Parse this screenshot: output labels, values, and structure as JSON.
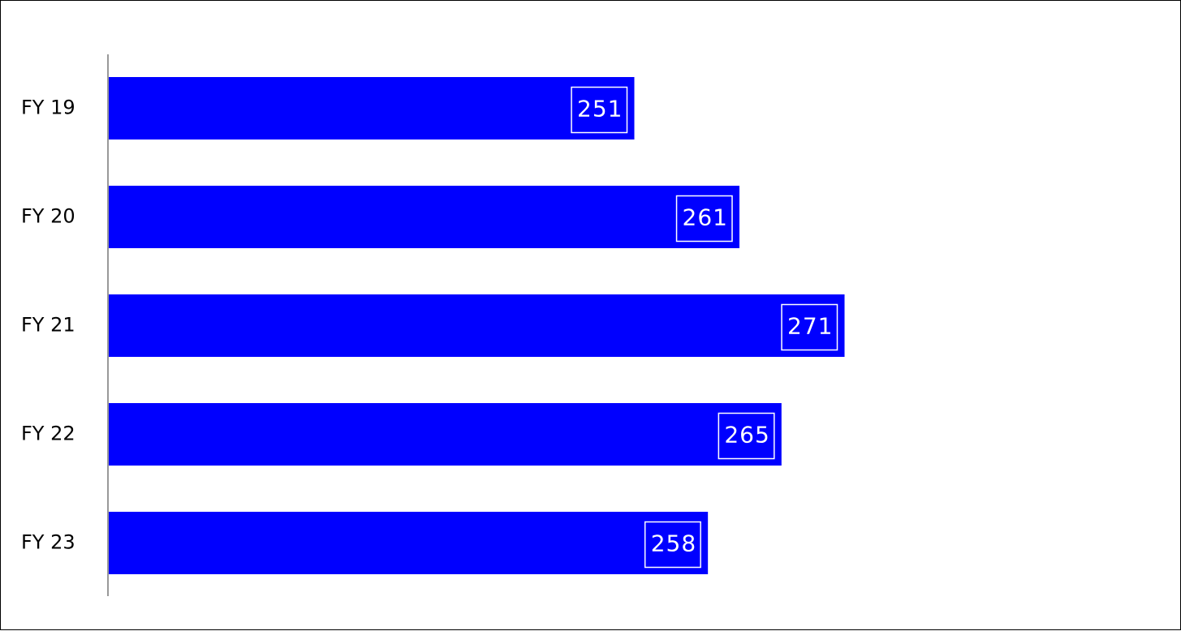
{
  "chart_data": {
    "type": "bar",
    "orientation": "horizontal",
    "categories": [
      "FY 19",
      "FY 20",
      "FY 21",
      "FY 22",
      "FY 23"
    ],
    "values": [
      251,
      261,
      271,
      265,
      258
    ],
    "data_labels": [
      "251",
      "261",
      "271",
      "265",
      "258"
    ],
    "title": "",
    "xlabel": "",
    "ylabel": "",
    "xlim": [
      201,
      273
    ],
    "grid": false,
    "legend": "none",
    "bar_color": "#0000ff",
    "axis_color": "#999999",
    "label_box_color": "#ffffff"
  }
}
